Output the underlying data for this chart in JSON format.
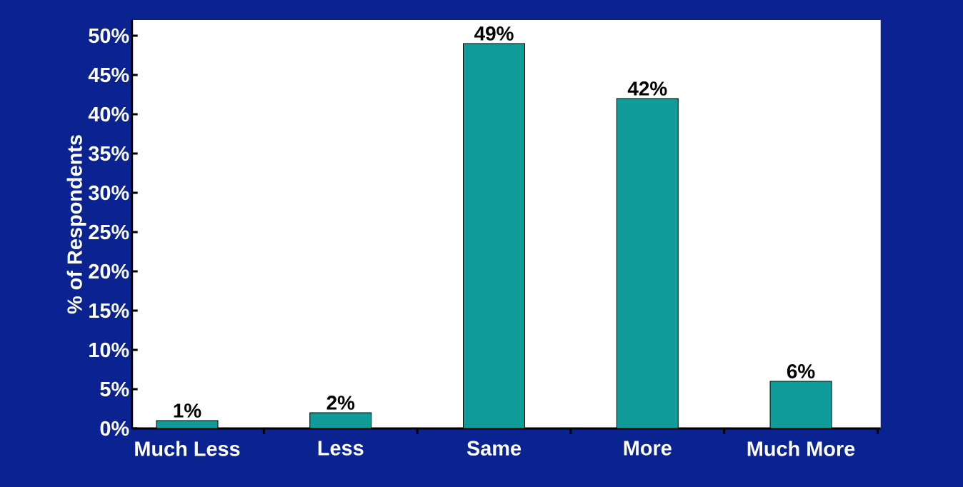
{
  "chart_data": {
    "type": "bar",
    "ylabel": "% of Respondents",
    "categories": [
      "Much Less",
      "Less",
      "Same",
      "More",
      "Much More"
    ],
    "values": [
      1,
      2,
      49,
      42,
      6
    ],
    "value_labels": [
      "1%",
      "2%",
      "49%",
      "42%",
      "6%"
    ],
    "color": "#109c98",
    "ylim": [
      0,
      52
    ],
    "yticks": [
      {
        "value": 0,
        "label": "0%"
      },
      {
        "value": 5,
        "label": "5%"
      },
      {
        "value": 10,
        "label": "10%"
      },
      {
        "value": 15,
        "label": "15%"
      },
      {
        "value": 20,
        "label": "20%"
      },
      {
        "value": 25,
        "label": "25%"
      },
      {
        "value": 30,
        "label": "30%"
      },
      {
        "value": 35,
        "label": "35%"
      },
      {
        "value": 40,
        "label": "40%"
      },
      {
        "value": 45,
        "label": "45%"
      },
      {
        "value": 50,
        "label": "50%"
      }
    ],
    "grid": false
  }
}
